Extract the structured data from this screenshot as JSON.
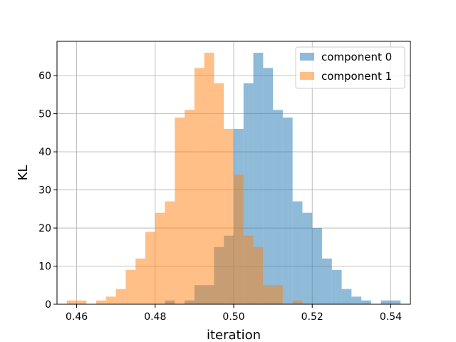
{
  "chart_data": {
    "type": "histogram",
    "xlabel": "iteration",
    "ylabel": "KL",
    "xlim": [
      0.455,
      0.545
    ],
    "ylim": [
      0,
      69
    ],
    "bin_width": 0.0025,
    "x_ticks": [
      0.46,
      0.48,
      0.5,
      0.52,
      0.54
    ],
    "x_tick_labels": [
      "0.46",
      "0.48",
      "0.50",
      "0.52",
      "0.54"
    ],
    "y_ticks": [
      0,
      10,
      20,
      30,
      40,
      50,
      60
    ],
    "y_tick_labels": [
      "0",
      "10",
      "20",
      "30",
      "40",
      "50",
      "60"
    ],
    "grid": true,
    "legend_position": "top-right",
    "series": [
      {
        "name": "component 0",
        "color": "#1f77b4",
        "alpha": 0.5,
        "bins": [
          {
            "x0": 0.4825,
            "x1": 0.485,
            "count": 1
          },
          {
            "x0": 0.4875,
            "x1": 0.49,
            "count": 1
          },
          {
            "x0": 0.49,
            "x1": 0.4925,
            "count": 5
          },
          {
            "x0": 0.4925,
            "x1": 0.495,
            "count": 5
          },
          {
            "x0": 0.495,
            "x1": 0.4975,
            "count": 15
          },
          {
            "x0": 0.4975,
            "x1": 0.5,
            "count": 18
          },
          {
            "x0": 0.5,
            "x1": 0.5025,
            "count": 46
          },
          {
            "x0": 0.5025,
            "x1": 0.505,
            "count": 58
          },
          {
            "x0": 0.505,
            "x1": 0.5075,
            "count": 66
          },
          {
            "x0": 0.5075,
            "x1": 0.51,
            "count": 62
          },
          {
            "x0": 0.51,
            "x1": 0.5125,
            "count": 51
          },
          {
            "x0": 0.5125,
            "x1": 0.515,
            "count": 49
          },
          {
            "x0": 0.515,
            "x1": 0.5175,
            "count": 27
          },
          {
            "x0": 0.5175,
            "x1": 0.52,
            "count": 24
          },
          {
            "x0": 0.52,
            "x1": 0.5225,
            "count": 20
          },
          {
            "x0": 0.5225,
            "x1": 0.525,
            "count": 12
          },
          {
            "x0": 0.525,
            "x1": 0.5275,
            "count": 9
          },
          {
            "x0": 0.5275,
            "x1": 0.53,
            "count": 4
          },
          {
            "x0": 0.53,
            "x1": 0.5325,
            "count": 2
          },
          {
            "x0": 0.5325,
            "x1": 0.535,
            "count": 1
          },
          {
            "x0": 0.5375,
            "x1": 0.54,
            "count": 1
          },
          {
            "x0": 0.54,
            "x1": 0.5425,
            "count": 1
          }
        ]
      },
      {
        "name": "component 1",
        "color": "#ff7f0e",
        "alpha": 0.5,
        "bins": [
          {
            "x0": 0.4575,
            "x1": 0.46,
            "count": 1
          },
          {
            "x0": 0.46,
            "x1": 0.4625,
            "count": 1
          },
          {
            "x0": 0.465,
            "x1": 0.4675,
            "count": 1
          },
          {
            "x0": 0.4675,
            "x1": 0.47,
            "count": 2
          },
          {
            "x0": 0.47,
            "x1": 0.4725,
            "count": 4
          },
          {
            "x0": 0.4725,
            "x1": 0.475,
            "count": 9
          },
          {
            "x0": 0.475,
            "x1": 0.4775,
            "count": 12
          },
          {
            "x0": 0.4775,
            "x1": 0.48,
            "count": 19
          },
          {
            "x0": 0.48,
            "x1": 0.4825,
            "count": 24
          },
          {
            "x0": 0.4825,
            "x1": 0.485,
            "count": 27
          },
          {
            "x0": 0.485,
            "x1": 0.4875,
            "count": 49
          },
          {
            "x0": 0.4875,
            "x1": 0.49,
            "count": 51
          },
          {
            "x0": 0.49,
            "x1": 0.4925,
            "count": 62
          },
          {
            "x0": 0.4925,
            "x1": 0.495,
            "count": 66
          },
          {
            "x0": 0.495,
            "x1": 0.4975,
            "count": 58
          },
          {
            "x0": 0.4975,
            "x1": 0.5,
            "count": 46
          },
          {
            "x0": 0.5,
            "x1": 0.5025,
            "count": 34
          },
          {
            "x0": 0.5025,
            "x1": 0.505,
            "count": 18
          },
          {
            "x0": 0.505,
            "x1": 0.5075,
            "count": 15
          },
          {
            "x0": 0.5075,
            "x1": 0.51,
            "count": 5
          },
          {
            "x0": 0.51,
            "x1": 0.5125,
            "count": 5
          },
          {
            "x0": 0.515,
            "x1": 0.5175,
            "count": 1
          }
        ]
      }
    ]
  }
}
